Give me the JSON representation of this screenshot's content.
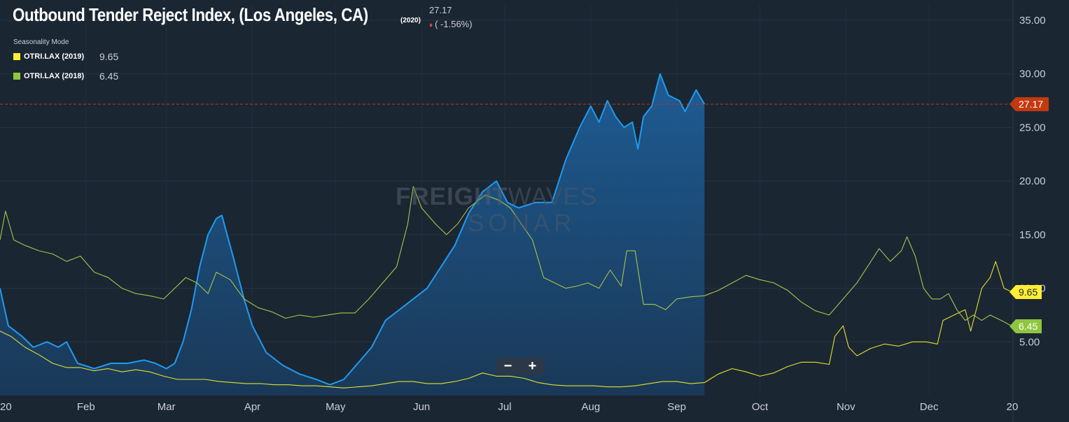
{
  "header": {
    "title": "Outbound Tender Reject Index, (Los Angeles, CA)",
    "year_tag": "(2020)",
    "last_value": "27.17",
    "change": "( -1.56%)",
    "seasonality_label": "Seasonality Mode"
  },
  "legend": [
    {
      "name": "OTRI.LAX (2019)",
      "value": "9.65",
      "color": "#ffee33"
    },
    {
      "name": "OTRI.LAX (2018)",
      "value": "6.45",
      "color": "#8fc63f"
    }
  ],
  "watermark": {
    "line1_bold": "FREIGHT",
    "line1_light": "WAVES",
    "line2": "SONAR"
  },
  "zoom": {
    "minus": "−",
    "plus": "+"
  },
  "colors": {
    "background": "#1b2633",
    "series_2020": "#1e9bf0",
    "series_2019": "#e6df2e",
    "series_2018": "#a7c44a",
    "current_marker": "#c23a10",
    "axis_text": "#c9cfd6"
  },
  "chart_data": {
    "type": "area",
    "x_unit": "day of year",
    "x_ticks": [
      {
        "label": "20",
        "day": 1
      },
      {
        "label": "Feb",
        "day": 32
      },
      {
        "label": "Mar",
        "day": 61
      },
      {
        "label": "Apr",
        "day": 92
      },
      {
        "label": "May",
        "day": 122
      },
      {
        "label": "Jun",
        "day": 153
      },
      {
        "label": "Jul",
        "day": 183
      },
      {
        "label": "Aug",
        "day": 214
      },
      {
        "label": "Sep",
        "day": 245
      },
      {
        "label": "Oct",
        "day": 275
      },
      {
        "label": "Nov",
        "day": 306
      },
      {
        "label": "Dec",
        "day": 336
      },
      {
        "label": "20",
        "day": 366
      }
    ],
    "y_ticks": [
      "5.00",
      "10.00",
      "15.00",
      "20.00",
      "25.00",
      "30.00",
      "35.00"
    ],
    "xlim": [
      1,
      366
    ],
    "ylim": [
      0,
      36.5
    ],
    "current_marker": {
      "label": "27.17",
      "value": 27.17
    },
    "end_labels": [
      {
        "label": "9.65",
        "value": 9.65,
        "color": "#ffee33",
        "text_color": "#1b2633"
      },
      {
        "label": "6.45",
        "value": 6.45,
        "color": "#8fc63f",
        "text_color": "#ffffff"
      }
    ],
    "series": [
      {
        "name": "OTRI.LAX (2020)",
        "area": true,
        "points": [
          [
            1,
            10
          ],
          [
            4,
            6.5
          ],
          [
            9,
            5.5
          ],
          [
            13,
            4.5
          ],
          [
            18,
            5
          ],
          [
            22,
            4.5
          ],
          [
            25,
            5
          ],
          [
            29,
            3
          ],
          [
            35,
            2.5
          ],
          [
            41,
            3
          ],
          [
            47,
            3
          ],
          [
            53,
            3.3
          ],
          [
            57,
            3
          ],
          [
            61,
            2.5
          ],
          [
            64,
            3
          ],
          [
            67,
            5
          ],
          [
            70,
            8
          ],
          [
            73,
            12
          ],
          [
            76,
            15
          ],
          [
            79,
            16.5
          ],
          [
            81,
            16.8
          ],
          [
            85,
            13
          ],
          [
            89,
            9
          ],
          [
            92,
            6.5
          ],
          [
            97,
            4
          ],
          [
            103,
            2.8
          ],
          [
            109,
            2
          ],
          [
            115,
            1.5
          ],
          [
            120,
            1
          ],
          [
            125,
            1.5
          ],
          [
            130,
            3
          ],
          [
            135,
            4.5
          ],
          [
            140,
            7
          ],
          [
            145,
            8
          ],
          [
            150,
            9
          ],
          [
            155,
            10
          ],
          [
            160,
            12
          ],
          [
            165,
            14
          ],
          [
            170,
            17
          ],
          [
            175,
            19
          ],
          [
            180,
            20
          ],
          [
            184,
            18
          ],
          [
            188,
            17.5
          ],
          [
            194,
            18
          ],
          [
            200,
            18
          ],
          [
            205,
            22
          ],
          [
            210,
            25
          ],
          [
            214,
            27
          ],
          [
            217,
            25.5
          ],
          [
            220,
            27.5
          ],
          [
            223,
            26
          ],
          [
            226,
            25
          ],
          [
            229,
            25.5
          ],
          [
            231,
            23
          ],
          [
            233,
            26
          ],
          [
            236,
            27
          ],
          [
            239,
            30
          ],
          [
            242,
            28
          ],
          [
            246,
            27.5
          ],
          [
            248,
            26.5
          ],
          [
            252,
            28.5
          ],
          [
            255,
            27.17
          ]
        ]
      },
      {
        "name": "OTRI.LAX (2019)",
        "area": false,
        "points": [
          [
            1,
            6
          ],
          [
            5,
            5.5
          ],
          [
            10,
            4.5
          ],
          [
            15,
            3.8
          ],
          [
            20,
            3
          ],
          [
            25,
            2.6
          ],
          [
            30,
            2.6
          ],
          [
            35,
            2.3
          ],
          [
            40,
            2.5
          ],
          [
            45,
            2.2
          ],
          [
            50,
            2.4
          ],
          [
            55,
            2.2
          ],
          [
            60,
            1.8
          ],
          [
            65,
            1.5
          ],
          [
            70,
            1.5
          ],
          [
            75,
            1.5
          ],
          [
            80,
            1.3
          ],
          [
            85,
            1.2
          ],
          [
            90,
            1.1
          ],
          [
            95,
            1.1
          ],
          [
            100,
            1
          ],
          [
            105,
            1
          ],
          [
            110,
            0.9
          ],
          [
            115,
            0.9
          ],
          [
            120,
            0.8
          ],
          [
            125,
            0.7
          ],
          [
            130,
            0.8
          ],
          [
            135,
            0.9
          ],
          [
            140,
            1.1
          ],
          [
            145,
            1.3
          ],
          [
            150,
            1.3
          ],
          [
            155,
            1.1
          ],
          [
            160,
            1.1
          ],
          [
            165,
            1.3
          ],
          [
            170,
            1.6
          ],
          [
            175,
            2.1
          ],
          [
            180,
            1.8
          ],
          [
            185,
            1.8
          ],
          [
            190,
            1.6
          ],
          [
            195,
            1.2
          ],
          [
            200,
            1
          ],
          [
            205,
            0.9
          ],
          [
            210,
            0.9
          ],
          [
            215,
            0.9
          ],
          [
            220,
            0.8
          ],
          [
            225,
            0.8
          ],
          [
            230,
            0.9
          ],
          [
            235,
            1.1
          ],
          [
            240,
            1.3
          ],
          [
            245,
            1.3
          ],
          [
            250,
            1.1
          ],
          [
            255,
            1.2
          ],
          [
            260,
            2
          ],
          [
            265,
            2.5
          ],
          [
            270,
            2.2
          ],
          [
            275,
            1.8
          ],
          [
            280,
            2.1
          ],
          [
            285,
            2.7
          ],
          [
            290,
            3.1
          ],
          [
            295,
            3.1
          ],
          [
            300,
            2.9
          ],
          [
            302,
            5.5
          ],
          [
            305,
            6.5
          ],
          [
            307,
            4.5
          ],
          [
            310,
            3.7
          ],
          [
            315,
            4.4
          ],
          [
            320,
            4.8
          ],
          [
            325,
            4.6
          ],
          [
            330,
            5
          ],
          [
            335,
            5
          ],
          [
            339,
            4.8
          ],
          [
            341,
            7
          ],
          [
            345,
            7.5
          ],
          [
            349,
            8
          ],
          [
            351,
            6
          ],
          [
            355,
            10
          ],
          [
            358,
            11
          ],
          [
            360,
            12.5
          ],
          [
            363,
            10
          ],
          [
            366,
            9.65
          ]
        ]
      },
      {
        "name": "OTRI.LAX (2018)",
        "area": false,
        "points": [
          [
            1,
            14.5
          ],
          [
            3,
            17.2
          ],
          [
            6,
            14.5
          ],
          [
            10,
            14
          ],
          [
            15,
            13.5
          ],
          [
            20,
            13.2
          ],
          [
            25,
            12.5
          ],
          [
            30,
            13
          ],
          [
            35,
            11.5
          ],
          [
            40,
            11
          ],
          [
            45,
            10
          ],
          [
            50,
            9.5
          ],
          [
            55,
            9.3
          ],
          [
            60,
            9
          ],
          [
            64,
            10
          ],
          [
            68,
            11
          ],
          [
            72,
            10.5
          ],
          [
            76,
            9.5
          ],
          [
            79,
            11.5
          ],
          [
            84,
            10.8
          ],
          [
            89,
            9
          ],
          [
            94,
            8.2
          ],
          [
            99,
            7.8
          ],
          [
            104,
            7.2
          ],
          [
            109,
            7.5
          ],
          [
            114,
            7.3
          ],
          [
            119,
            7.5
          ],
          [
            124,
            7.7
          ],
          [
            129,
            7.7
          ],
          [
            134,
            9
          ],
          [
            139,
            10.5
          ],
          [
            144,
            12
          ],
          [
            148,
            16
          ],
          [
            150,
            19.5
          ],
          [
            153,
            17.5
          ],
          [
            158,
            16
          ],
          [
            162,
            15
          ],
          [
            166,
            16
          ],
          [
            170,
            17.5
          ],
          [
            176,
            18.7
          ],
          [
            181,
            18.2
          ],
          [
            185,
            17.5
          ],
          [
            189,
            16
          ],
          [
            193,
            14.5
          ],
          [
            197,
            11
          ],
          [
            201,
            10.5
          ],
          [
            205,
            10
          ],
          [
            209,
            10.2
          ],
          [
            213,
            10.5
          ],
          [
            217,
            10
          ],
          [
            221,
            11.7
          ],
          [
            225,
            10.2
          ],
          [
            227,
            13.5
          ],
          [
            230,
            13.5
          ],
          [
            233,
            8.5
          ],
          [
            237,
            8.5
          ],
          [
            241,
            8
          ],
          [
            245,
            9
          ],
          [
            250,
            9.2
          ],
          [
            255,
            9.3
          ],
          [
            260,
            9.8
          ],
          [
            265,
            10.5
          ],
          [
            270,
            11.2
          ],
          [
            275,
            10.8
          ],
          [
            280,
            10.5
          ],
          [
            285,
            9.8
          ],
          [
            290,
            8.7
          ],
          [
            295,
            7.9
          ],
          [
            300,
            7.5
          ],
          [
            305,
            9
          ],
          [
            310,
            10.5
          ],
          [
            315,
            12.5
          ],
          [
            318,
            13.7
          ],
          [
            322,
            12.5
          ],
          [
            326,
            13.5
          ],
          [
            328,
            14.8
          ],
          [
            331,
            13
          ],
          [
            334,
            10
          ],
          [
            337,
            9
          ],
          [
            340,
            9
          ],
          [
            343,
            9.5
          ],
          [
            346,
            8
          ],
          [
            349,
            7
          ],
          [
            352,
            7.5
          ],
          [
            355,
            7
          ],
          [
            358,
            7.5
          ],
          [
            362,
            7
          ],
          [
            366,
            6.45
          ]
        ]
      }
    ]
  }
}
